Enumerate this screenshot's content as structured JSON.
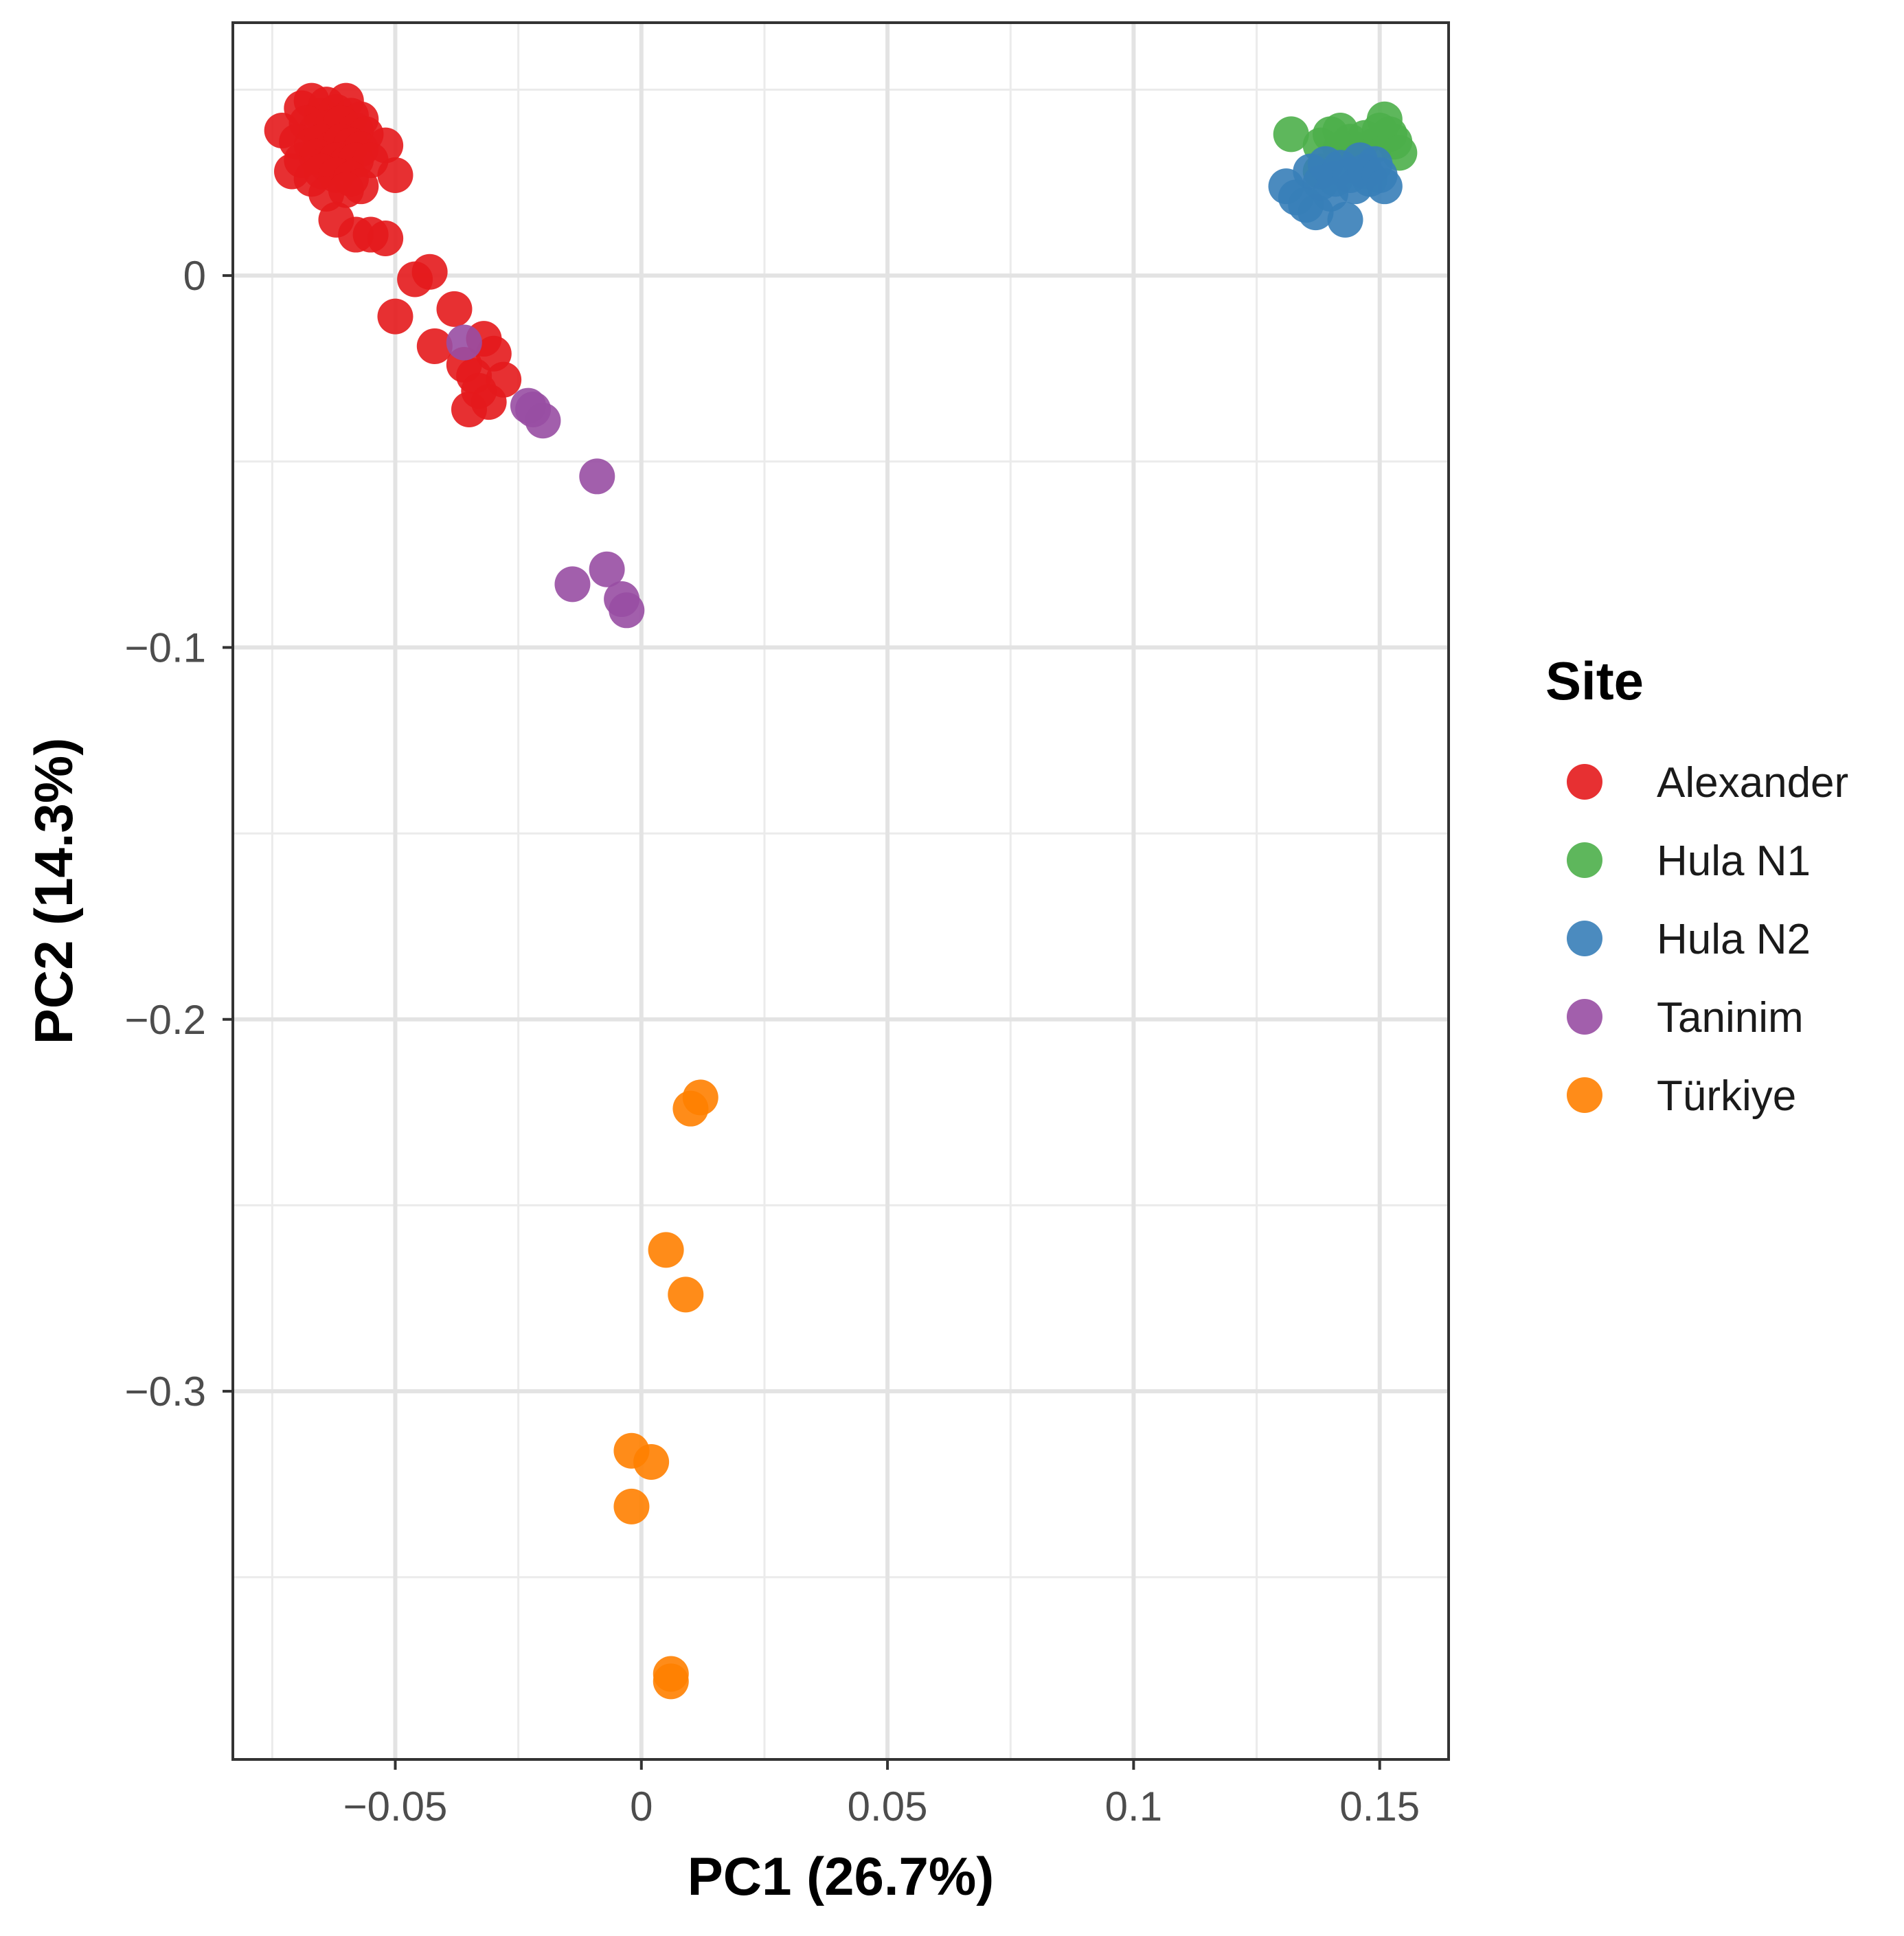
{
  "chart_data": {
    "type": "scatter",
    "title": "",
    "xlabel": "PC1 (26.7%)",
    "ylabel": "PC2 (14.3%)",
    "xlim": [
      -0.083,
      0.164
    ],
    "ylim": [
      -0.399,
      0.068
    ],
    "grid": true,
    "x_ticks": [
      -0.05,
      0,
      0.05,
      0.1,
      0.15
    ],
    "x_tick_labels": [
      "−0.05",
      "0",
      "0.05",
      "0.1",
      "0.15"
    ],
    "y_ticks": [
      0,
      -0.1,
      -0.2,
      -0.3
    ],
    "y_tick_labels": [
      "0",
      "−0.1",
      "−0.2",
      "−0.3"
    ],
    "legend_title": "Site",
    "legend_position": "right",
    "series": [
      {
        "name": "Alexander",
        "color": "#E41A1C",
        "points": [
          [
            -0.073,
            0.039
          ],
          [
            -0.069,
            0.045
          ],
          [
            -0.067,
            0.047
          ],
          [
            -0.065,
            0.043
          ],
          [
            -0.064,
            0.046
          ],
          [
            -0.062,
            0.044
          ],
          [
            -0.06,
            0.047
          ],
          [
            -0.059,
            0.043
          ],
          [
            -0.057,
            0.042
          ],
          [
            -0.068,
            0.041
          ],
          [
            -0.066,
            0.039
          ],
          [
            -0.063,
            0.04
          ],
          [
            -0.061,
            0.041
          ],
          [
            -0.058,
            0.039
          ],
          [
            -0.056,
            0.038
          ],
          [
            -0.07,
            0.036
          ],
          [
            -0.067,
            0.035
          ],
          [
            -0.065,
            0.036
          ],
          [
            -0.063,
            0.034
          ],
          [
            -0.061,
            0.036
          ],
          [
            -0.059,
            0.035
          ],
          [
            -0.057,
            0.034
          ],
          [
            -0.052,
            0.035
          ],
          [
            -0.069,
            0.031
          ],
          [
            -0.066,
            0.032
          ],
          [
            -0.064,
            0.03
          ],
          [
            -0.062,
            0.031
          ],
          [
            -0.06,
            0.03
          ],
          [
            -0.058,
            0.031
          ],
          [
            -0.055,
            0.031
          ],
          [
            -0.071,
            0.028
          ],
          [
            -0.067,
            0.026
          ],
          [
            -0.065,
            0.028
          ],
          [
            -0.062,
            0.027
          ],
          [
            -0.059,
            0.026
          ],
          [
            -0.057,
            0.024
          ],
          [
            -0.05,
            0.027
          ],
          [
            -0.064,
            0.022
          ],
          [
            -0.06,
            0.023
          ],
          [
            -0.062,
            0.015
          ],
          [
            -0.058,
            0.011
          ],
          [
            -0.055,
            0.011
          ],
          [
            -0.052,
            0.01
          ],
          [
            -0.046,
            -0.001
          ],
          [
            -0.043,
            0.001
          ],
          [
            -0.05,
            -0.011
          ],
          [
            -0.038,
            -0.009
          ],
          [
            -0.042,
            -0.019
          ],
          [
            -0.036,
            -0.024
          ],
          [
            -0.032,
            -0.017
          ],
          [
            -0.03,
            -0.021
          ],
          [
            -0.034,
            -0.027
          ],
          [
            -0.028,
            -0.028
          ],
          [
            -0.031,
            -0.034
          ],
          [
            -0.035,
            -0.036
          ],
          [
            -0.033,
            -0.031
          ]
        ]
      },
      {
        "name": "Hula N1",
        "color": "#4DAF4A",
        "points": [
          [
            0.132,
            0.038
          ],
          [
            0.138,
            0.035
          ],
          [
            0.14,
            0.038
          ],
          [
            0.142,
            0.039
          ],
          [
            0.144,
            0.036
          ],
          [
            0.145,
            0.034
          ],
          [
            0.147,
            0.037
          ],
          [
            0.149,
            0.035
          ],
          [
            0.15,
            0.039
          ],
          [
            0.151,
            0.042
          ],
          [
            0.152,
            0.038
          ],
          [
            0.153,
            0.036
          ],
          [
            0.154,
            0.033
          ],
          [
            0.138,
            0.028
          ],
          [
            0.142,
            0.034
          ]
        ]
      },
      {
        "name": "Hula N2",
        "color": "#377EB8",
        "points": [
          [
            0.131,
            0.024
          ],
          [
            0.133,
            0.021
          ],
          [
            0.135,
            0.019
          ],
          [
            0.137,
            0.017
          ],
          [
            0.136,
            0.028
          ],
          [
            0.138,
            0.025
          ],
          [
            0.139,
            0.03
          ],
          [
            0.14,
            0.022
          ],
          [
            0.141,
            0.026
          ],
          [
            0.142,
            0.029
          ],
          [
            0.143,
            0.015
          ],
          [
            0.144,
            0.027
          ],
          [
            0.145,
            0.024
          ],
          [
            0.146,
            0.031
          ],
          [
            0.147,
            0.028
          ],
          [
            0.148,
            0.026
          ],
          [
            0.149,
            0.03
          ],
          [
            0.15,
            0.027
          ],
          [
            0.151,
            0.024
          ]
        ]
      },
      {
        "name": "Taninim",
        "color": "#984EA3",
        "points": [
          [
            -0.036,
            -0.018
          ],
          [
            -0.023,
            -0.035
          ],
          [
            -0.022,
            -0.036
          ],
          [
            -0.02,
            -0.039
          ],
          [
            -0.009,
            -0.054
          ],
          [
            -0.014,
            -0.083
          ],
          [
            -0.007,
            -0.079
          ],
          [
            -0.004,
            -0.087
          ],
          [
            -0.003,
            -0.09
          ]
        ]
      },
      {
        "name": "Türkiye",
        "color": "#FF7F00",
        "points": [
          [
            0.012,
            -0.221
          ],
          [
            0.01,
            -0.224
          ],
          [
            0.005,
            -0.262
          ],
          [
            0.009,
            -0.274
          ],
          [
            -0.002,
            -0.316
          ],
          [
            0.002,
            -0.319
          ],
          [
            -0.002,
            -0.331
          ],
          [
            0.006,
            -0.376
          ],
          [
            0.006,
            -0.378
          ]
        ]
      }
    ]
  }
}
